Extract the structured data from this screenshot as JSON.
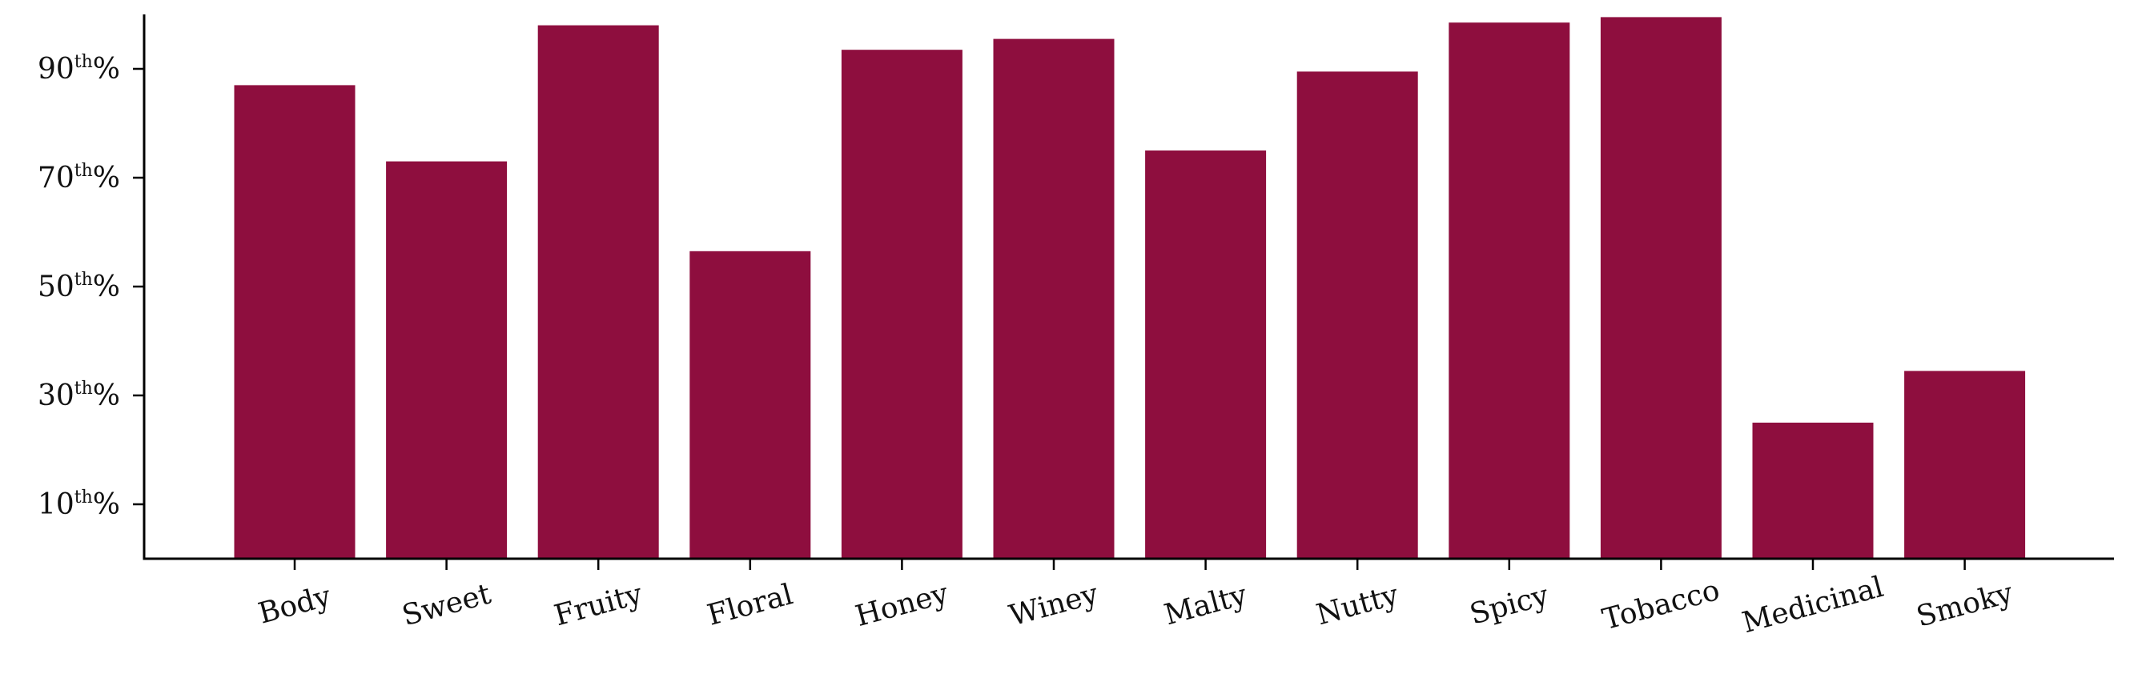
{
  "chart_data": {
    "type": "bar",
    "categories": [
      "Body",
      "Sweet",
      "Fruity",
      "Floral",
      "Honey",
      "Winey",
      "Malty",
      "Nutty",
      "Spicy",
      "Tobacco",
      "Medicinal",
      "Smoky"
    ],
    "values": [
      87,
      73,
      98,
      56.5,
      93.5,
      95.5,
      75,
      89.5,
      98.5,
      99.5,
      25,
      34.5
    ],
    "ylim": [
      0,
      100
    ],
    "yticks": [
      {
        "value": 10,
        "number": "10",
        "sup": "th",
        "suffix": "%"
      },
      {
        "value": 30,
        "number": "30",
        "sup": "th",
        "suffix": "%"
      },
      {
        "value": 50,
        "number": "50",
        "sup": "th",
        "suffix": "%"
      },
      {
        "value": 70,
        "number": "70",
        "sup": "th",
        "suffix": "%"
      },
      {
        "value": 90,
        "number": "90",
        "sup": "th",
        "suffix": "%"
      }
    ],
    "xtick_rotation_deg": -15,
    "title": "",
    "xlabel": "",
    "ylabel": "",
    "grid": false,
    "bar_color": "#8e0e3e"
  }
}
